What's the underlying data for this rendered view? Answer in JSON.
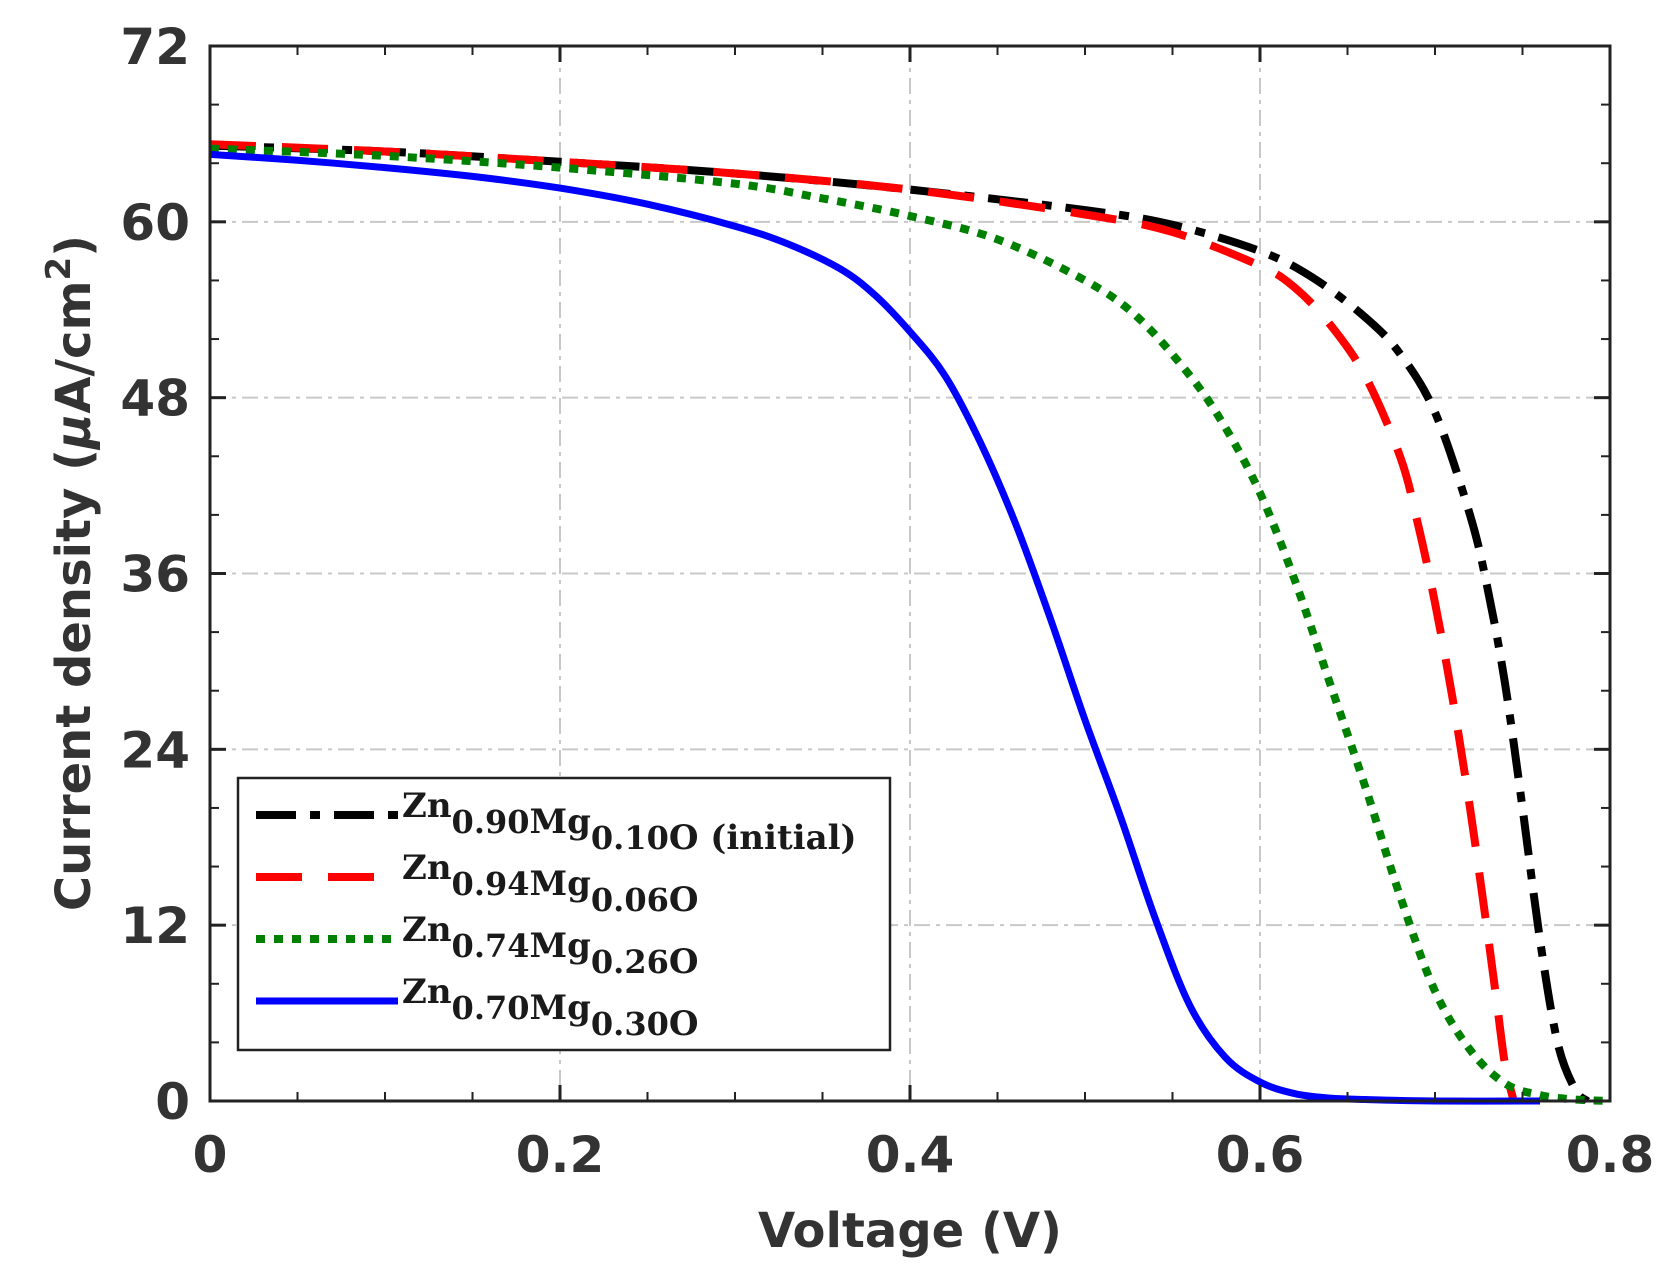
{
  "chart_data": {
    "type": "line",
    "title": "",
    "xlabel": "Voltage (V)",
    "ylabel": "Current density (μA/cm²)",
    "ylabel_parts": {
      "main": "Current density (",
      "mu": "μ",
      "unit": "A/cm",
      "exp": "2",
      "close": ")"
    },
    "xlim": [
      0,
      0.8
    ],
    "ylim": [
      0,
      72
    ],
    "xticks": [
      0,
      0.2,
      0.4,
      0.6,
      0.8
    ],
    "xtick_labels": [
      "0",
      "0.2",
      "0.4",
      "0.6",
      "0.8"
    ],
    "yticks": [
      0,
      12,
      24,
      36,
      48,
      60,
      72
    ],
    "ytick_labels": [
      "0",
      "12",
      "24",
      "36",
      "48",
      "60",
      "72"
    ],
    "grid": true,
    "legend_position": "bottom-left",
    "series": [
      {
        "name": "Zn0.90Mg0.10O (initial)",
        "label_parts": {
          "a": "Zn",
          "a_sub": "0.90",
          "b": "Mg",
          "b_sub": "0.10",
          "c": "O",
          "suffix": " (initial)"
        },
        "color": "#000000",
        "style": "dashdot",
        "x": [
          0,
          0.1,
          0.2,
          0.3,
          0.4,
          0.5,
          0.55,
          0.6,
          0.63,
          0.66,
          0.68,
          0.7,
          0.72,
          0.73,
          0.74,
          0.75,
          0.76,
          0.77,
          0.78,
          0.787
        ],
        "y": [
          65.2,
          64.8,
          64.1,
          63.3,
          62.2,
          60.8,
          59.8,
          58.0,
          56.2,
          53.5,
          51.0,
          47.0,
          40.0,
          35.0,
          28.5,
          20.0,
          11.0,
          4.0,
          0.8,
          0
        ]
      },
      {
        "name": "Zn0.94Mg0.06O",
        "label_parts": {
          "a": "Zn",
          "a_sub": "0.94",
          "b": "Mg",
          "b_sub": "0.06",
          "c": "O",
          "suffix": ""
        },
        "color": "#ff0000",
        "style": "dashed",
        "x": [
          0,
          0.1,
          0.2,
          0.3,
          0.4,
          0.5,
          0.55,
          0.6,
          0.62,
          0.64,
          0.66,
          0.68,
          0.69,
          0.7,
          0.71,
          0.72,
          0.73,
          0.735,
          0.74,
          0.745
        ],
        "y": [
          65.3,
          64.8,
          64.1,
          63.3,
          62.2,
          60.5,
          59.3,
          57.0,
          55.5,
          53.0,
          49.5,
          44.0,
          39.5,
          34.0,
          27.5,
          20.0,
          11.5,
          7.0,
          2.5,
          0
        ]
      },
      {
        "name": "Zn0.74Mg0.26O",
        "label_parts": {
          "a": "Zn",
          "a_sub": "0.74",
          "b": "Mg",
          "b_sub": "0.26",
          "c": "O",
          "suffix": ""
        },
        "color": "#008000",
        "style": "dotted",
        "x": [
          0,
          0.1,
          0.2,
          0.3,
          0.35,
          0.4,
          0.45,
          0.5,
          0.53,
          0.56,
          0.58,
          0.6,
          0.62,
          0.64,
          0.66,
          0.68,
          0.7,
          0.72,
          0.74,
          0.76,
          0.78,
          0.8
        ],
        "y": [
          65.0,
          64.5,
          63.7,
          62.6,
          61.6,
          60.4,
          58.8,
          56.0,
          53.5,
          49.5,
          46.0,
          41.5,
          35.5,
          28.5,
          21.5,
          14.0,
          7.5,
          3.5,
          1.2,
          0.4,
          0.1,
          0
        ]
      },
      {
        "name": "Zn0.70Mg0.30O",
        "label_parts": {
          "a": "Zn",
          "a_sub": "0.70",
          "b": "Mg",
          "b_sub": "0.30",
          "c": "O",
          "suffix": ""
        },
        "color": "#0000ff",
        "style": "solid",
        "x": [
          0,
          0.05,
          0.1,
          0.15,
          0.2,
          0.25,
          0.3,
          0.33,
          0.36,
          0.38,
          0.4,
          0.42,
          0.44,
          0.46,
          0.48,
          0.5,
          0.52,
          0.54,
          0.56,
          0.58,
          0.6,
          0.62,
          0.64,
          0.66,
          0.7,
          0.76
        ],
        "y": [
          64.6,
          64.2,
          63.7,
          63.1,
          62.3,
          61.2,
          59.7,
          58.5,
          56.8,
          55.0,
          52.5,
          49.5,
          45.0,
          39.5,
          33.0,
          26.0,
          19.5,
          12.5,
          6.5,
          3.0,
          1.3,
          0.5,
          0.2,
          0.1,
          0,
          0
        ]
      }
    ]
  }
}
